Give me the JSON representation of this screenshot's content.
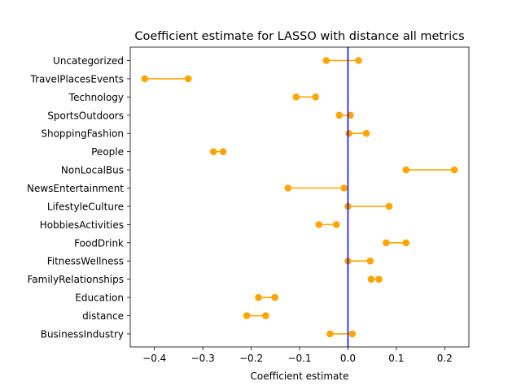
{
  "chart_data": {
    "type": "dumbbell",
    "title": "Coefficient estimate for LASSO with distance all metrics",
    "xlabel": "Coefficient estimate",
    "ylabel": "",
    "xlim": [
      -0.45,
      0.25
    ],
    "xticks": [
      -0.4,
      -0.3,
      -0.2,
      -0.1,
      0.0,
      0.1,
      0.2
    ],
    "xtick_labels": [
      "−0.4",
      "−0.3",
      "−0.2",
      "−0.1",
      "0.0",
      "0.1",
      "0.2"
    ],
    "categories": [
      "Uncategorized",
      "TravelPlacesEvents",
      "Technology",
      "SportsOutdoors",
      "ShoppingFashion",
      "People",
      "NonLocalBus",
      "NewsEntertainment",
      "LifestyleCulture",
      "HobbiesActivities",
      "FoodDrink",
      "FitnessWellness",
      "FamilyRelationships",
      "Education",
      "distance",
      "BusinessIndustry"
    ],
    "ranges": [
      [
        -0.045,
        0.022
      ],
      [
        -0.42,
        -0.33
      ],
      [
        -0.107,
        -0.067
      ],
      [
        -0.018,
        0.005
      ],
      [
        0.002,
        0.038
      ],
      [
        -0.278,
        -0.258
      ],
      [
        0.12,
        0.22
      ],
      [
        -0.124,
        -0.008
      ],
      [
        0.0,
        0.085
      ],
      [
        -0.06,
        -0.024
      ],
      [
        0.079,
        0.12
      ],
      [
        0.0,
        0.046
      ],
      [
        0.048,
        0.064
      ],
      [
        -0.185,
        -0.151
      ],
      [
        -0.209,
        -0.17
      ],
      [
        -0.037,
        0.009
      ]
    ],
    "reference_line": 0.0,
    "colors": {
      "marker": "#ffa500",
      "reference": "#0000ff",
      "axis": "#000000"
    },
    "grid": false,
    "legend": "none"
  }
}
